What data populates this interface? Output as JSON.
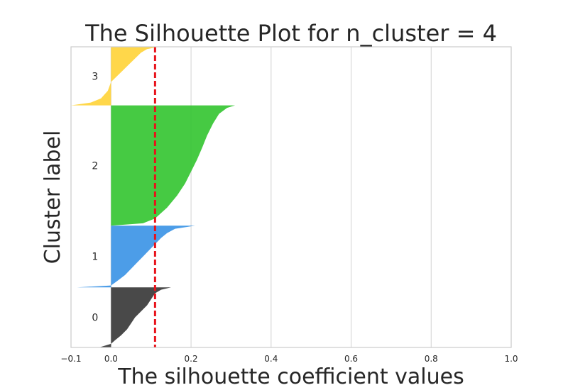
{
  "chart_data": {
    "type": "area",
    "title": "The Silhouette Plot for n_cluster = 4",
    "xlabel": "The silhouette coefficient values",
    "ylabel": "Cluster label",
    "xlim": [
      -0.1,
      1.0
    ],
    "xticks": [
      -0.1,
      0.0,
      0.2,
      0.4,
      0.6,
      0.8,
      1.0
    ],
    "xtick_labels": [
      "−0.1",
      "0.0",
      "0.2",
      "0.4",
      "0.6",
      "0.8",
      "1.0"
    ],
    "grid": "vertical",
    "average_silhouette": 0.11,
    "average_line_color": "#e8111a",
    "clusters": [
      {
        "label": "0",
        "color": "#3a3a3a",
        "min": -0.03,
        "max": 0.15,
        "band": [
          0,
          0.2
        ],
        "profile": [
          [
            0,
            -0.03
          ],
          [
            0.06,
            0.0
          ],
          [
            0.12,
            0.01
          ],
          [
            0.2,
            0.025
          ],
          [
            0.3,
            0.04
          ],
          [
            0.4,
            0.05
          ],
          [
            0.5,
            0.06
          ],
          [
            0.6,
            0.075
          ],
          [
            0.7,
            0.09
          ],
          [
            0.8,
            0.1
          ],
          [
            0.9,
            0.11
          ],
          [
            0.96,
            0.125
          ],
          [
            1,
            0.15
          ]
        ]
      },
      {
        "label": "1",
        "color": "#3d95e6",
        "min": -0.085,
        "max": 0.21,
        "band": [
          0.2,
          0.405
        ],
        "profile": [
          [
            0,
            -0.085
          ],
          [
            0.03,
            0.0
          ],
          [
            0.1,
            0.015
          ],
          [
            0.2,
            0.035
          ],
          [
            0.3,
            0.05
          ],
          [
            0.4,
            0.065
          ],
          [
            0.5,
            0.08
          ],
          [
            0.6,
            0.095
          ],
          [
            0.7,
            0.11
          ],
          [
            0.8,
            0.125
          ],
          [
            0.88,
            0.14
          ],
          [
            0.95,
            0.16
          ],
          [
            1,
            0.21
          ]
        ]
      },
      {
        "label": "2",
        "color": "#36c533",
        "min": 0.0,
        "max": 0.31,
        "band": [
          0.405,
          0.805
        ],
        "profile": [
          [
            0,
            0.0
          ],
          [
            0.02,
            0.08
          ],
          [
            0.06,
            0.11
          ],
          [
            0.15,
            0.14
          ],
          [
            0.25,
            0.165
          ],
          [
            0.35,
            0.185
          ],
          [
            0.45,
            0.2
          ],
          [
            0.55,
            0.215
          ],
          [
            0.65,
            0.228
          ],
          [
            0.75,
            0.24
          ],
          [
            0.85,
            0.255
          ],
          [
            0.93,
            0.27
          ],
          [
            0.98,
            0.29
          ],
          [
            1,
            0.31
          ]
        ]
      },
      {
        "label": "3",
        "color": "#ffd43b",
        "min": -0.1,
        "max": 0.12,
        "band": [
          0.805,
          1.0
        ],
        "profile": [
          [
            0,
            -0.1
          ],
          [
            0.05,
            -0.05
          ],
          [
            0.12,
            -0.025
          ],
          [
            0.25,
            -0.008
          ],
          [
            0.4,
            0.0
          ],
          [
            0.5,
            0.015
          ],
          [
            0.6,
            0.03
          ],
          [
            0.7,
            0.045
          ],
          [
            0.8,
            0.06
          ],
          [
            0.9,
            0.075
          ],
          [
            0.96,
            0.09
          ],
          [
            1,
            0.12
          ]
        ]
      }
    ]
  }
}
